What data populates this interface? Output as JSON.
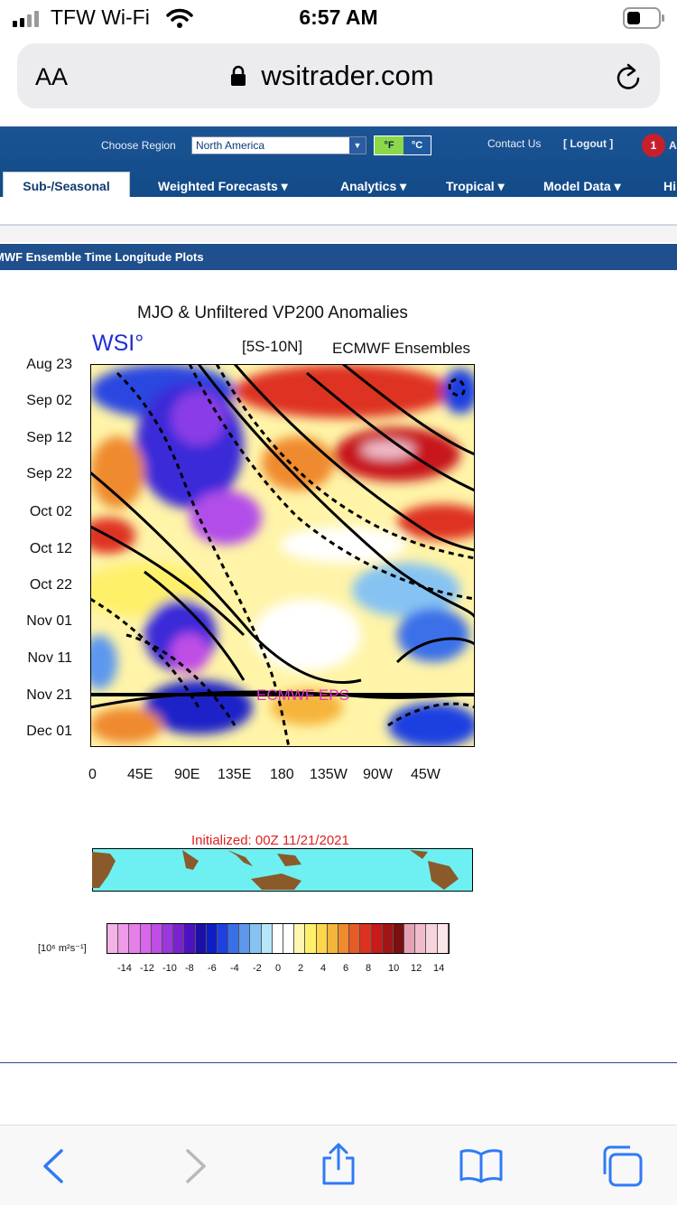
{
  "status_bar": {
    "carrier": "TFW Wi-Fi",
    "time": "6:57 AM",
    "icons": [
      "signal-bars-icon",
      "wifi-icon",
      "battery-icon"
    ]
  },
  "browser": {
    "text_size_label": "AA",
    "url": "wsitrader.com",
    "icons": [
      "lock-icon",
      "reload-icon"
    ]
  },
  "site_header": {
    "choose_region_label": "Choose Region",
    "region_value": "North America",
    "unit_f": "°F",
    "unit_c": "°C",
    "contact_label": "Contact Us",
    "logout_label": "[ Logout ]",
    "alert_count": "1",
    "alert_trailing": "A"
  },
  "nav": {
    "items": [
      {
        "label": "Sub-/Seasonal",
        "active": true
      },
      {
        "label": "Weighted Forecasts ▾"
      },
      {
        "label": "Analytics ▾"
      },
      {
        "label": "Tropical ▾"
      },
      {
        "label": "Model Data ▾"
      },
      {
        "label": "Hi"
      }
    ]
  },
  "page": {
    "title": "MWF Ensemble Time Longitude Plots"
  },
  "figure": {
    "title": "MJO & Unfiltered VP200 Anomalies",
    "logo": "WSI°",
    "region": "[5S-10N]",
    "model": "ECMWF Ensembles",
    "y_ticks": [
      "Aug 23",
      "Sep 02",
      "Sep 12",
      "Sep 22",
      "Oct 02",
      "Oct 12",
      "Oct 22",
      "Nov 01",
      "Nov 11",
      "Nov 21",
      "Dec 01"
    ],
    "x_ticks": [
      "0",
      "45E",
      "90E",
      "135E",
      "180",
      "135W",
      "90W",
      "45W"
    ],
    "eps_label": "ECMWF EPS",
    "initialized": "Initialized: 00Z 11/21/2021",
    "colorbar_unit": "[10⁶ m²s⁻¹]",
    "colorbar_ticks": [
      "-14",
      "-12",
      "-10",
      "-8",
      "-6",
      "-4",
      "-2",
      "0",
      "2",
      "4",
      "6",
      "8",
      "10",
      "12",
      "14"
    ],
    "colorbar_colors": [
      "#f4b3e6",
      "#ef9ae8",
      "#e67fe8",
      "#d966ec",
      "#c04de6",
      "#9a38db",
      "#7a22d0",
      "#4c12c2",
      "#1c10a8",
      "#0d1ec6",
      "#1e40e0",
      "#3a6fe8",
      "#5d98ee",
      "#86c3f3",
      "#b7e6f8",
      "#ffffff",
      "#ffffff",
      "#fff6b0",
      "#fff06a",
      "#ffd64a",
      "#f5b43a",
      "#ef8a2e",
      "#e75b25",
      "#de3220",
      "#c8191b",
      "#a31416",
      "#7a1010",
      "#e6a2b5",
      "#f0bccb",
      "#f7d4dc",
      "#fbe6ea"
    ]
  },
  "toolbar": {
    "icons": [
      "back-icon",
      "forward-icon",
      "share-icon",
      "bookmarks-icon",
      "tabs-icon"
    ]
  }
}
